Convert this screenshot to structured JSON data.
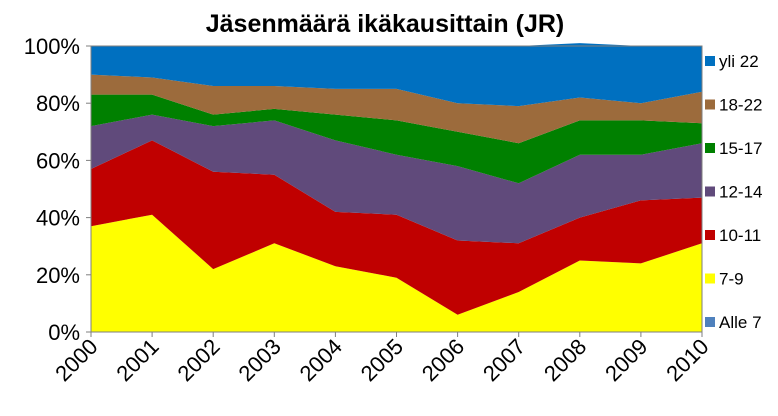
{
  "chart_data": {
    "type": "area",
    "stacked": "percent",
    "title": "Jäsenmäärä ikäkausittain (JR)",
    "x": [
      "2000",
      "2001",
      "2002",
      "2003",
      "2004",
      "2005",
      "2006",
      "2007",
      "2008",
      "2009",
      "2010"
    ],
    "y_ticks": [
      "0%",
      "20%",
      "40%",
      "60%",
      "80%",
      "100%"
    ],
    "ylim": [
      0,
      100
    ],
    "legend_position": "right",
    "series": [
      {
        "name": "Alle 7",
        "color": "#4f81bd",
        "values": [
          0,
          0,
          0,
          0,
          0,
          0,
          0,
          0,
          0,
          0,
          0
        ]
      },
      {
        "name": "7-9",
        "color": "#ffff00",
        "values": [
          37,
          41,
          22,
          31,
          23,
          19,
          6,
          14,
          25,
          24,
          31
        ]
      },
      {
        "name": "10-11",
        "color": "#c00000",
        "values": [
          20,
          26,
          34,
          24,
          19,
          22,
          26,
          17,
          15,
          22,
          16
        ]
      },
      {
        "name": "12-14",
        "color": "#604a7b",
        "values": [
          15,
          9,
          16,
          19,
          25,
          21,
          26,
          21,
          22,
          16,
          19
        ]
      },
      {
        "name": "15-17",
        "color": "#008000",
        "values": [
          11,
          7,
          4,
          4,
          9,
          12,
          12,
          14,
          12,
          12,
          7
        ]
      },
      {
        "name": "18-22",
        "color": "#9c6b3c",
        "values": [
          7,
          6,
          10,
          8,
          9,
          11,
          10,
          13,
          8,
          6,
          11
        ]
      },
      {
        "name": "yli 22",
        "color": "#0070c0",
        "values": [
          10,
          11,
          14,
          14,
          15,
          15,
          20,
          21,
          19,
          20,
          16
        ]
      }
    ]
  }
}
